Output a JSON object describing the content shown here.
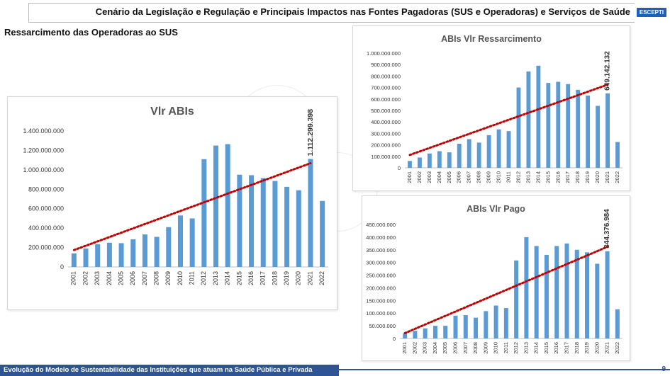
{
  "header": {
    "title": "Cenário da Legislação e Regulação e Principais Impactos nas Fontes Pagadoras (SUS e Operadoras) e Serviços de Saúde",
    "brand": "ESCEPTI"
  },
  "section_title": "Ressarcimento das Operadoras ao SUS",
  "footer": {
    "text": "Evolução do Modelo de Sustentabilidade das Instituições que atuam na Saúde Pública e Privada",
    "page_number": "9"
  },
  "colors": {
    "bar": "#5b9bd5",
    "trend": "#c00000",
    "footer": "#2f5496",
    "brand": "#1f5fb4"
  },
  "chart_data": [
    {
      "type": "bar",
      "title": "Vlr ABIs",
      "categories": [
        "2001",
        "2002",
        "2003",
        "2004",
        "2005",
        "2006",
        "2007",
        "2008",
        "2009",
        "2010",
        "2011",
        "2012",
        "2013",
        "2014",
        "2015",
        "2016",
        "2017",
        "2018",
        "2019",
        "2020",
        "2021",
        "2022"
      ],
      "values": [
        140000000,
        190000000,
        235000000,
        250000000,
        245000000,
        285000000,
        335000000,
        310000000,
        410000000,
        530000000,
        500000000,
        1110000000,
        1250000000,
        1265000000,
        950000000,
        945000000,
        915000000,
        885000000,
        825000000,
        790000000,
        1112299398,
        680000000
      ],
      "data_label": "1.112.299.398",
      "yticks": [
        "0",
        "200.000.000",
        "400.000.000",
        "600.000.000",
        "800.000.000",
        "1.000.000.000",
        "1.200.000.000",
        "1.400.000.000"
      ],
      "ylim": [
        0,
        1400000000
      ],
      "trendline": "linear",
      "grid": false
    },
    {
      "type": "bar",
      "title": "ABIs Vlr Ressarcimento",
      "categories": [
        "2001",
        "2002",
        "2003",
        "2004",
        "2005",
        "2006",
        "2007",
        "2008",
        "2009",
        "2010",
        "2011",
        "2012",
        "2013",
        "2014",
        "2015",
        "2016",
        "2017",
        "2018",
        "2019",
        "2020",
        "2021",
        "2022"
      ],
      "values": [
        60000000,
        90000000,
        125000000,
        145000000,
        135000000,
        210000000,
        250000000,
        220000000,
        285000000,
        335000000,
        320000000,
        700000000,
        840000000,
        890000000,
        740000000,
        750000000,
        730000000,
        680000000,
        630000000,
        540000000,
        649142132,
        225000000
      ],
      "data_label": "649.142.132",
      "yticks": [
        "0",
        "100.000.000",
        "200.000.000",
        "300.000.000",
        "400.000.000",
        "500.000.000",
        "600.000.000",
        "700.000.000",
        "800.000.000",
        "900.000.000",
        "1.000.000.000"
      ],
      "ylim": [
        0,
        1000000000
      ],
      "trendline": "linear",
      "grid": false
    },
    {
      "type": "bar",
      "title": "ABIs Vlr Pago",
      "categories": [
        "2001",
        "2002",
        "2003",
        "2004",
        "2005",
        "2006",
        "2007",
        "2008",
        "2009",
        "2010",
        "2011",
        "2012",
        "2013",
        "2014",
        "2015",
        "2016",
        "2017",
        "2018",
        "2019",
        "2020",
        "2021",
        "2022"
      ],
      "values": [
        20000000,
        30000000,
        40000000,
        50000000,
        50000000,
        90000000,
        92000000,
        82000000,
        108000000,
        130000000,
        120000000,
        308000000,
        400000000,
        365000000,
        330000000,
        365000000,
        375000000,
        350000000,
        340000000,
        295000000,
        344376984,
        115000000
      ],
      "data_label": "344.376.984",
      "yticks": [
        "0",
        "50.000.000",
        "100.000.000",
        "150.000.000",
        "200.000.000",
        "250.000.000",
        "300.000.000",
        "350.000.000",
        "400.000.000",
        "450.000.000"
      ],
      "ylim": [
        0,
        450000000
      ],
      "trendline": "linear",
      "grid": false
    }
  ]
}
